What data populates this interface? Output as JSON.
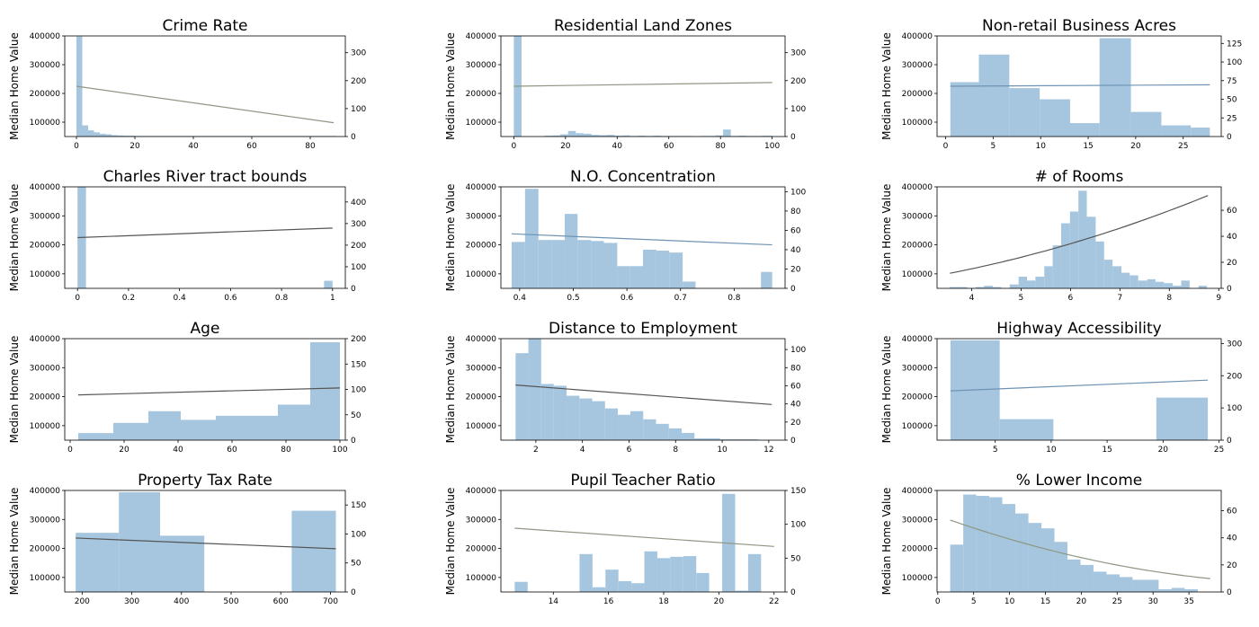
{
  "chart_data": [
    {
      "type": "bar",
      "title": "Crime Rate",
      "ylabel": "Median Home Value",
      "left_ylim": [
        50000,
        400000
      ],
      "left_yticks": [
        100000,
        200000,
        300000,
        400000
      ],
      "right_ylim": [
        0,
        360
      ],
      "right_yticks": [
        0,
        100,
        200,
        300
      ],
      "xlim": [
        -4,
        92
      ],
      "xticks": [
        0,
        20,
        40,
        60,
        80
      ],
      "hist": {
        "edges": [
          0,
          2,
          4,
          6,
          8,
          10,
          12,
          14,
          16,
          18,
          20,
          22,
          89
        ],
        "counts": [
          358,
          40,
          22,
          15,
          10,
          8,
          5,
          4,
          3,
          3,
          2,
          2
        ]
      },
      "trend": {
        "x": [
          0,
          88
        ],
        "y": [
          225000,
          98000
        ],
        "color": "#8f9683"
      }
    },
    {
      "type": "bar",
      "title": "Residential Land Zones",
      "ylabel": "Median Home Value",
      "left_ylim": [
        50000,
        400000
      ],
      "left_yticks": [
        100000,
        200000,
        300000,
        400000
      ],
      "right_ylim": [
        0,
        360
      ],
      "right_yticks": [
        0,
        100,
        200,
        300
      ],
      "xlim": [
        -5,
        105
      ],
      "xticks": [
        0,
        20,
        40,
        60,
        80,
        100
      ],
      "hist": {
        "edges": [
          0,
          3,
          6,
          9,
          12,
          15,
          18,
          21,
          24,
          27,
          30,
          33,
          36,
          39,
          42,
          45,
          48,
          51,
          54,
          57,
          60,
          63,
          66,
          69,
          72,
          75,
          78,
          81,
          84,
          87,
          90,
          93,
          96,
          99,
          100
        ],
        "counts": [
          360,
          0,
          0,
          0,
          3,
          4,
          8,
          20,
          12,
          10,
          6,
          5,
          6,
          3,
          4,
          2,
          3,
          2,
          3,
          2,
          2,
          2,
          2,
          1,
          2,
          2,
          4,
          25,
          2,
          3,
          2,
          2,
          3,
          3
        ]
      },
      "trend": {
        "x": [
          0,
          100
        ],
        "y": [
          225000,
          238000
        ],
        "color": "#8f9683"
      }
    },
    {
      "type": "bar",
      "title": "Non-retail Business Acres",
      "ylabel": "Median Home Value",
      "left_ylim": [
        50000,
        400000
      ],
      "left_yticks": [
        100000,
        200000,
        300000,
        400000
      ],
      "right_ylim": [
        0,
        135
      ],
      "right_yticks": [
        0,
        25,
        50,
        75,
        100,
        125
      ],
      "xlim": [
        -0.9,
        29
      ],
      "xticks": [
        0,
        5,
        10,
        15,
        20,
        25
      ],
      "hist": {
        "edges": [
          0.5,
          3.5,
          6.7,
          9.9,
          13.1,
          16.2,
          19.5,
          22.7,
          25.8,
          27.8
        ],
        "counts": [
          73,
          110,
          65,
          50,
          18,
          132,
          33,
          15,
          12
        ]
      },
      "trend": {
        "x": [
          0.5,
          27.8
        ],
        "y": [
          225000,
          230000
        ],
        "color": "#6e93b3"
      }
    },
    {
      "type": "bar",
      "title": "Charles River tract bounds",
      "ylabel": "Median Home Value",
      "left_ylim": [
        50000,
        400000
      ],
      "left_yticks": [
        100000,
        200000,
        300000,
        400000
      ],
      "right_ylim": [
        0,
        470
      ],
      "right_yticks": [
        0,
        100,
        200,
        300,
        400
      ],
      "xlim": [
        -0.05,
        1.05
      ],
      "xticks": [
        0.0,
        0.2,
        0.4,
        0.6,
        0.8,
        1.0
      ],
      "hist": {
        "edges": [
          0,
          0.0333,
          0.0667,
          0.1,
          0.1333,
          0.1667,
          0.2,
          0.2333,
          0.2667,
          0.3,
          0.3333,
          0.3667,
          0.4,
          0.4333,
          0.4667,
          0.5,
          0.5333,
          0.5667,
          0.6,
          0.6333,
          0.6667,
          0.7,
          0.7333,
          0.7667,
          0.8,
          0.8333,
          0.8667,
          0.9,
          0.9333,
          0.9667,
          1.0
        ],
        "counts": [
          471,
          0,
          0,
          0,
          0,
          0,
          0,
          0,
          0,
          0,
          0,
          0,
          0,
          0,
          0,
          0,
          0,
          0,
          0,
          0,
          0,
          0,
          0,
          0,
          0,
          0,
          0,
          0,
          0,
          35
        ]
      },
      "trend": {
        "x": [
          0,
          1
        ],
        "y": [
          225000,
          258000
        ],
        "color": "#555555"
      }
    },
    {
      "type": "bar",
      "title": "N.O. Concentration",
      "ylabel": "Median Home Value",
      "left_ylim": [
        50000,
        400000
      ],
      "left_yticks": [
        100000,
        200000,
        300000,
        400000
      ],
      "right_ylim": [
        0,
        105
      ],
      "right_yticks": [
        0,
        20,
        40,
        60,
        80,
        100
      ],
      "xlim": [
        0.365,
        0.895
      ],
      "xticks": [
        0.4,
        0.5,
        0.6,
        0.7,
        0.8
      ],
      "hist": {
        "edges": [
          0.385,
          0.41,
          0.435,
          0.46,
          0.484,
          0.508,
          0.533,
          0.557,
          0.582,
          0.606,
          0.63,
          0.655,
          0.679,
          0.704,
          0.728,
          0.752,
          0.777,
          0.801,
          0.826,
          0.85,
          0.871
        ],
        "counts": [
          48,
          103,
          50,
          50,
          77,
          50,
          49,
          47,
          23,
          23,
          40,
          39,
          37,
          7,
          0,
          0,
          0,
          0,
          0,
          17
        ]
      },
      "trend": {
        "x": [
          0.385,
          0.871
        ],
        "y": [
          238000,
          200000
        ],
        "color": "#6e93b3"
      }
    },
    {
      "type": "bar",
      "title": "# of Rooms",
      "ylabel": "Median Home Value",
      "left_ylim": [
        50000,
        400000
      ],
      "left_yticks": [
        100000,
        200000,
        300000,
        400000
      ],
      "right_ylim": [
        0,
        78
      ],
      "right_yticks": [
        0,
        20,
        40,
        60
      ],
      "xlim": [
        3.3,
        9.05
      ],
      "xticks": [
        4,
        5,
        6,
        7,
        8,
        9
      ],
      "hist": {
        "edges": [
          3.56,
          3.73,
          3.91,
          4.08,
          4.25,
          4.43,
          4.6,
          4.77,
          4.95,
          5.12,
          5.29,
          5.47,
          5.64,
          5.81,
          5.99,
          6.16,
          6.33,
          6.51,
          6.68,
          6.85,
          7.03,
          7.2,
          7.37,
          7.55,
          7.72,
          7.89,
          8.07,
          8.24,
          8.41,
          8.59,
          8.76
        ],
        "counts": [
          1,
          1,
          0,
          1,
          2,
          1,
          0,
          3,
          9,
          6,
          9,
          17,
          33,
          50,
          59,
          75,
          55,
          36,
          22,
          17,
          12,
          10,
          6,
          7,
          5,
          4,
          2,
          6,
          0,
          2
        ]
      },
      "trend": {
        "x": [
          3.56,
          8.78
        ],
        "y": [
          102000,
          370000,
          "curve"
        ],
        "color": "#555555"
      }
    },
    {
      "type": "bar",
      "title": "Age",
      "ylabel": "Median Home Value",
      "left_ylim": [
        50000,
        400000
      ],
      "left_yticks": [
        100000,
        200000,
        300000,
        400000
      ],
      "right_ylim": [
        0,
        200
      ],
      "right_yticks": [
        0,
        50,
        100,
        150,
        200
      ],
      "xlim": [
        -2,
        102
      ],
      "xticks": [
        0,
        20,
        40,
        60,
        80,
        100
      ],
      "hist": {
        "edges": [
          3,
          16,
          29,
          41,
          54,
          77,
          89,
          100
        ],
        "counts": [
          14,
          34,
          57,
          40,
          48,
          70,
          193
        ]
      },
      "trend": {
        "x": [
          3,
          100
        ],
        "y": [
          206000,
          230000
        ],
        "color": "#555555"
      }
    },
    {
      "type": "bar",
      "title": "Distance to Employment",
      "ylabel": "Median Home Value",
      "left_ylim": [
        50000,
        400000
      ],
      "left_yticks": [
        100000,
        200000,
        300000,
        400000
      ],
      "right_ylim": [
        0,
        112
      ],
      "right_yticks": [
        0,
        20,
        40,
        60,
        80,
        100
      ],
      "xlim": [
        0.5,
        12.7
      ],
      "xticks": [
        2,
        4,
        6,
        8,
        10,
        12
      ],
      "hist": {
        "edges": [
          1.13,
          1.68,
          2.23,
          2.77,
          3.32,
          3.87,
          4.42,
          4.97,
          5.52,
          6.06,
          6.61,
          7.16,
          7.71,
          8.26,
          8.81,
          9.36,
          9.91,
          10.45,
          11.0,
          11.55,
          12.13
        ],
        "counts": [
          96,
          112,
          62,
          60,
          49,
          46,
          43,
          35,
          28,
          32,
          23,
          18,
          13,
          8,
          2,
          2,
          1,
          1,
          1,
          0
        ]
      },
      "trend": {
        "x": [
          1.13,
          12.13
        ],
        "y": [
          240000,
          173000
        ],
        "color": "#555555"
      }
    },
    {
      "type": "bar",
      "title": "Highway Accessibility",
      "ylabel": "Median Home Value",
      "left_ylim": [
        50000,
        400000
      ],
      "left_yticks": [
        100000,
        200000,
        300000,
        400000
      ],
      "right_ylim": [
        0,
        315
      ],
      "right_yticks": [
        0,
        100,
        200,
        300
      ],
      "xlim": [
        -0.2,
        25.2
      ],
      "xticks": [
        5,
        10,
        15,
        20,
        25
      ],
      "hist": {
        "edges": [
          1,
          5.4,
          10.2,
          15,
          19.4,
          24
        ],
        "counts": [
          310,
          65,
          0,
          0,
          132
        ]
      },
      "trend": {
        "x": [
          1,
          24
        ],
        "y": [
          220000,
          257000
        ],
        "color": "#6e93b3"
      }
    },
    {
      "type": "bar",
      "title": "Property Tax Rate",
      "ylabel": "Median Home Value",
      "left_ylim": [
        50000,
        400000
      ],
      "left_yticks": [
        100000,
        200000,
        300000,
        400000
      ],
      "right_ylim": [
        0,
        175
      ],
      "right_yticks": [
        0,
        50,
        100,
        150
      ],
      "xlim": [
        165,
        730
      ],
      "xticks": [
        200,
        300,
        400,
        500,
        600,
        700
      ],
      "hist": {
        "edges": [
          187,
          274,
          357,
          446,
          534,
          622,
          711
        ],
        "counts": [
          102,
          172,
          97,
          0,
          0,
          140
        ]
      },
      "trend": {
        "x": [
          187,
          711
        ],
        "y": [
          236000,
          199000
        ],
        "color": "#555555"
      }
    },
    {
      "type": "bar",
      "title": "Pupil Teacher Ratio",
      "ylabel": "Median Home Value",
      "left_ylim": [
        50000,
        400000
      ],
      "left_yticks": [
        100000,
        200000,
        300000,
        400000
      ],
      "right_ylim": [
        0,
        150
      ],
      "right_yticks": [
        0,
        50,
        100,
        150
      ],
      "xlim": [
        12.1,
        22.4
      ],
      "xticks": [
        14,
        16,
        18,
        20,
        22
      ],
      "hist": {
        "edges": [
          12.6,
          13.07,
          13.54,
          14.01,
          14.48,
          14.95,
          15.42,
          15.89,
          16.36,
          16.83,
          17.3,
          17.77,
          18.24,
          18.71,
          19.18,
          19.65,
          20.12,
          20.59,
          21.06,
          21.53,
          22.0
        ],
        "counts": [
          15,
          0,
          0,
          0,
          0,
          56,
          7,
          33,
          16,
          13,
          60,
          50,
          52,
          53,
          28,
          0,
          145,
          2,
          56,
          0
        ]
      },
      "trend": {
        "x": [
          12.6,
          22
        ],
        "y": [
          270000,
          207000
        ],
        "color": "#8f9683"
      }
    },
    {
      "type": "bar",
      "title": "% Lower Income",
      "ylabel": "Median Home Value",
      "left_ylim": [
        50000,
        400000
      ],
      "left_yticks": [
        100000,
        200000,
        300000,
        400000
      ],
      "right_ylim": [
        0,
        75
      ],
      "right_yticks": [
        0,
        20,
        40,
        60
      ],
      "xlim": [
        -0.1,
        39.5
      ],
      "xticks": [
        0,
        5,
        10,
        15,
        20,
        25,
        30,
        35
      ],
      "hist": {
        "edges": [
          1.73,
          3.55,
          5.36,
          7.18,
          8.99,
          10.81,
          12.63,
          14.44,
          16.26,
          18.07,
          19.89,
          21.7,
          23.52,
          25.34,
          27.15,
          28.97,
          30.78,
          32.6,
          34.41,
          36.23,
          37.97
        ],
        "counts": [
          35,
          72,
          71,
          70,
          65,
          58,
          51,
          47,
          37,
          24,
          20,
          15,
          13,
          11,
          9,
          9,
          2,
          3,
          2,
          0
        ]
      },
      "trend": {
        "x": [
          1.73,
          37.97
        ],
        "y": [
          298000,
          96000,
          "curve"
        ],
        "color": "#8f9683"
      }
    }
  ]
}
